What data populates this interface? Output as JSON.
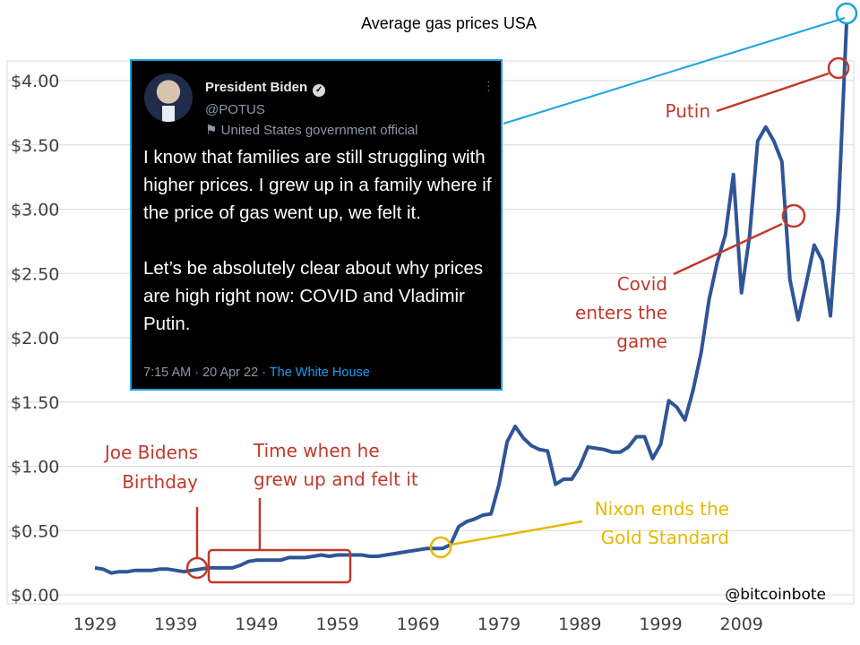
{
  "chart_data": {
    "type": "line",
    "title": "Average gas prices USA",
    "xlabel": "",
    "ylabel": "",
    "xlim": [
      1929,
      2022
    ],
    "ylim": [
      0,
      4.15
    ],
    "grid": "horizontal",
    "x_ticks": [
      "1929",
      "1939",
      "1949",
      "1959",
      "1969",
      "1979",
      "1989",
      "1999",
      "2009"
    ],
    "y_ticks": [
      "$0.00",
      "$0.50",
      "$1.00",
      "$1.50",
      "$2.00",
      "$2.50",
      "$3.00",
      "$3.50",
      "$4.00"
    ],
    "y_tick_values": [
      0,
      0.5,
      1.0,
      1.5,
      2.0,
      2.5,
      3.0,
      3.5,
      4.0
    ],
    "x_tick_values": [
      1929,
      1939,
      1949,
      1959,
      1969,
      1979,
      1989,
      1999,
      2009
    ],
    "series": [
      {
        "color": "#2f5597",
        "points": [
          [
            1929,
            0.21
          ],
          [
            1930,
            0.2
          ],
          [
            1931,
            0.17
          ],
          [
            1932,
            0.18
          ],
          [
            1933,
            0.18
          ],
          [
            1934,
            0.19
          ],
          [
            1935,
            0.19
          ],
          [
            1936,
            0.19
          ],
          [
            1937,
            0.2
          ],
          [
            1938,
            0.2
          ],
          [
            1939,
            0.19
          ],
          [
            1940,
            0.18
          ],
          [
            1941,
            0.19
          ],
          [
            1942,
            0.2
          ],
          [
            1943,
            0.21
          ],
          [
            1944,
            0.21
          ],
          [
            1945,
            0.21
          ],
          [
            1946,
            0.21
          ],
          [
            1947,
            0.23
          ],
          [
            1948,
            0.26
          ],
          [
            1949,
            0.27
          ],
          [
            1950,
            0.27
          ],
          [
            1951,
            0.27
          ],
          [
            1952,
            0.27
          ],
          [
            1953,
            0.29
          ],
          [
            1954,
            0.29
          ],
          [
            1955,
            0.29
          ],
          [
            1956,
            0.3
          ],
          [
            1957,
            0.31
          ],
          [
            1958,
            0.3
          ],
          [
            1959,
            0.31
          ],
          [
            1960,
            0.31
          ],
          [
            1961,
            0.31
          ],
          [
            1962,
            0.31
          ],
          [
            1963,
            0.3
          ],
          [
            1964,
            0.3
          ],
          [
            1965,
            0.31
          ],
          [
            1966,
            0.32
          ],
          [
            1967,
            0.33
          ],
          [
            1968,
            0.34
          ],
          [
            1969,
            0.35
          ],
          [
            1970,
            0.36
          ],
          [
            1971,
            0.36
          ],
          [
            1972,
            0.36
          ],
          [
            1973,
            0.39
          ],
          [
            1974,
            0.53
          ],
          [
            1975,
            0.57
          ],
          [
            1976,
            0.59
          ],
          [
            1977,
            0.62
          ],
          [
            1978,
            0.63
          ],
          [
            1979,
            0.86
          ],
          [
            1980,
            1.19
          ],
          [
            1981,
            1.31
          ],
          [
            1982,
            1.22
          ],
          [
            1983,
            1.16
          ],
          [
            1984,
            1.13
          ],
          [
            1985,
            1.12
          ],
          [
            1986,
            0.86
          ],
          [
            1987,
            0.9
          ],
          [
            1988,
            0.9
          ],
          [
            1989,
            1.0
          ],
          [
            1990,
            1.15
          ],
          [
            1991,
            1.14
          ],
          [
            1992,
            1.13
          ],
          [
            1993,
            1.11
          ],
          [
            1994,
            1.11
          ],
          [
            1995,
            1.15
          ],
          [
            1996,
            1.23
          ],
          [
            1997,
            1.23
          ],
          [
            1998,
            1.06
          ],
          [
            1999,
            1.17
          ],
          [
            2000,
            1.51
          ],
          [
            2001,
            1.46
          ],
          [
            2002,
            1.36
          ],
          [
            2003,
            1.59
          ],
          [
            2004,
            1.88
          ],
          [
            2005,
            2.3
          ],
          [
            2006,
            2.59
          ],
          [
            2007,
            2.8
          ],
          [
            2008,
            3.27
          ],
          [
            2009,
            2.35
          ],
          [
            2010,
            2.79
          ],
          [
            2011,
            3.53
          ],
          [
            2012,
            3.64
          ],
          [
            2013,
            3.53
          ],
          [
            2014,
            3.37
          ],
          [
            2015,
            2.45
          ],
          [
            2016,
            2.14
          ],
          [
            2017,
            2.42
          ],
          [
            2018,
            2.72
          ],
          [
            2019,
            2.6
          ],
          [
            2020,
            2.17
          ],
          [
            2021,
            3.01
          ],
          [
            2022,
            4.45
          ]
        ]
      }
    ],
    "annotations": [
      {
        "lines": [
          "Joe Bidens",
          "Birthday"
        ],
        "color": "#c0392b"
      },
      {
        "lines": [
          "Time when he",
          "grew up and felt it"
        ],
        "color": "#c0392b"
      },
      {
        "lines": [
          "Nixon ends the",
          "Gold Standard"
        ],
        "color": "#e6b800"
      },
      {
        "lines": [
          "Covid",
          "enters the",
          "game"
        ],
        "color": "#c0392b"
      },
      {
        "lines": [
          "Putin"
        ],
        "color": "#c0392b"
      }
    ],
    "credit": "@bitcoinbote"
  },
  "tweet": {
    "name": "President Biden",
    "handle": "@POTUS",
    "label": "United States government official",
    "paragraph1": "I know that families are still struggling with higher prices. I grew up in a family where if the price of gas went up, we felt it.",
    "paragraph2": "Let’s be absolutely clear about why prices are high right now: COVID and Vladimir Putin.",
    "timestamp": "7:15 AM · 20 Apr 22 · ",
    "source": "The White House"
  },
  "colors": {
    "line": "#2f5597",
    "red_annotation": "#c0392b",
    "yellow_annotation": "#e6b800",
    "blue_connector": "#1aa3dc",
    "grid": "#d9d9d9"
  }
}
